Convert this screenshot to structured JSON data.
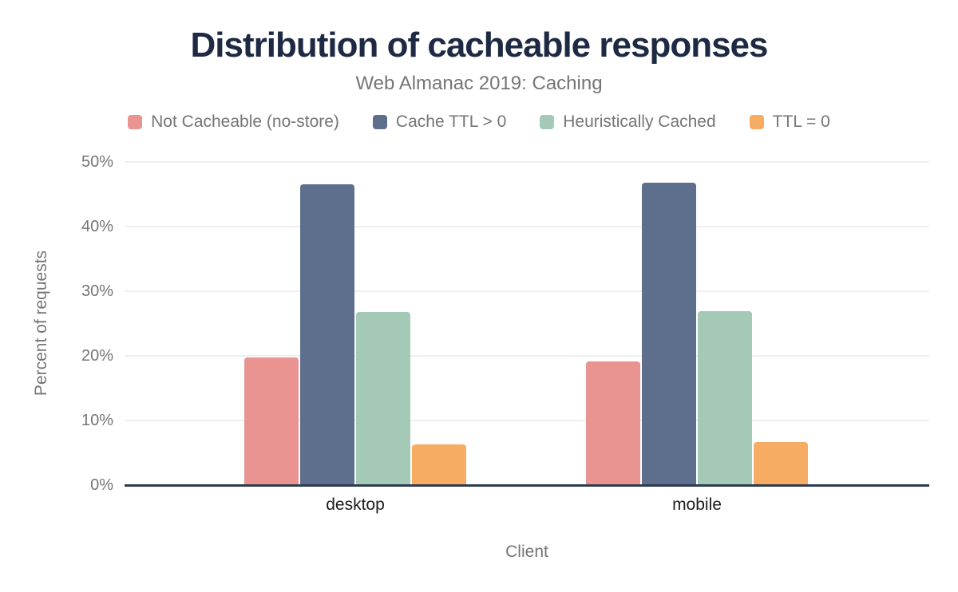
{
  "header": {
    "title": "Distribution of cacheable responses",
    "subtitle": "Web Almanac 2019: Caching"
  },
  "chart_data": {
    "type": "bar",
    "title": "Distribution of cacheable responses",
    "subtitle": "Web Almanac 2019: Caching",
    "categories": [
      "desktop",
      "mobile"
    ],
    "series": [
      {
        "name": "Not Cacheable (no-store)",
        "color": "#ea9492",
        "values": [
          19.8,
          19.1
        ]
      },
      {
        "name": "Cache TTL > 0",
        "color": "#5d6f8d",
        "values": [
          46.6,
          46.8
        ]
      },
      {
        "name": "Heuristically Cached",
        "color": "#a5c9b7",
        "values": [
          26.8,
          26.9
        ]
      },
      {
        "name": "TTL = 0",
        "color": "#f6ad63",
        "values": [
          6.3,
          6.7
        ]
      }
    ],
    "xlabel": "Client",
    "ylabel": "Percent of requests",
    "ylim": [
      0,
      50
    ],
    "yticks": [
      0,
      10,
      20,
      30,
      40,
      50
    ],
    "ytick_format": "{v}%",
    "grid": true,
    "legend_position": "top"
  },
  "colors": {
    "title_text": "#1e2a44",
    "muted_text": "#757575",
    "category_text": "#1c1c1c",
    "gridline": "#efefef",
    "axis_line": "#2d3b4e",
    "background": "#ffffff"
  }
}
